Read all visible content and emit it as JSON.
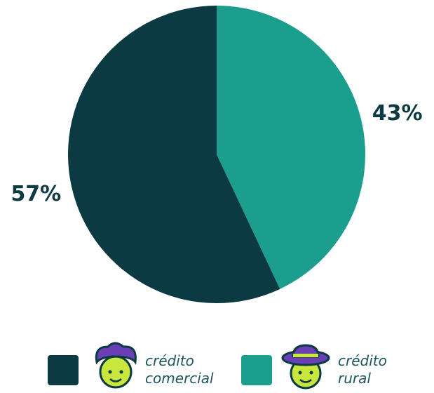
{
  "chart_data": {
    "type": "pie",
    "categories": [
      "crédito comercial",
      "crédito rural"
    ],
    "values": [
      57,
      43
    ],
    "value_labels": [
      "57%",
      "43%"
    ],
    "colors": [
      "#0b3a43",
      "#1c9e8e"
    ],
    "start": "top",
    "direction": "clockwise-from-last"
  }
}
